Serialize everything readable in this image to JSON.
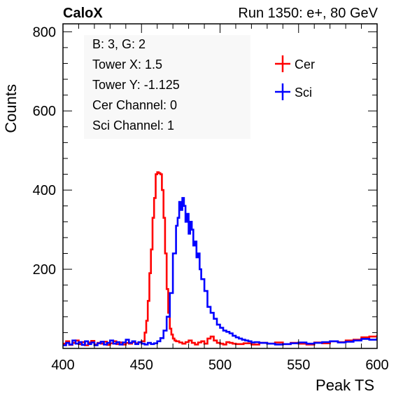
{
  "header": {
    "experiment": "CaloX",
    "run_info": "Run 1350: e+, 80 GeV"
  },
  "stats_box": {
    "lines": [
      "B: 3, G: 2",
      "Tower X: 1.5",
      "Tower Y: -1.125",
      "Cer Channel: 0",
      "Sci Channel: 1"
    ]
  },
  "chart_data": {
    "type": "line",
    "style": "step-histogram",
    "xlabel": "Peak TS",
    "ylabel": "Counts",
    "xlim": [
      400,
      600
    ],
    "ylim": [
      0,
      820
    ],
    "x_ticks": [
      400,
      450,
      500,
      550,
      600
    ],
    "y_ticks": [
      200,
      400,
      600,
      800
    ],
    "grid": false,
    "legend_position": "top-right",
    "series": [
      {
        "name": "Cer",
        "color": "#ff0000",
        "x": [
          400,
          402,
          404,
          406,
          408,
          410,
          412,
          414,
          416,
          418,
          420,
          422,
          424,
          426,
          428,
          430,
          432,
          434,
          436,
          438,
          440,
          442,
          444,
          446,
          448,
          450,
          452,
          453,
          454,
          455,
          456,
          457,
          458,
          459,
          460,
          461,
          462,
          463,
          464,
          465,
          466,
          467,
          468,
          469,
          470,
          471,
          472,
          474,
          476,
          478,
          480,
          482,
          484,
          486,
          488,
          490,
          492,
          494,
          496,
          498,
          500,
          502,
          504,
          506,
          508,
          510,
          515,
          520,
          525,
          530,
          535,
          540,
          545,
          550,
          555,
          560,
          565,
          570,
          575,
          580,
          585,
          590,
          595,
          600
        ],
        "values": [
          12,
          18,
          9,
          14,
          20,
          11,
          16,
          8,
          15,
          19,
          10,
          14,
          12,
          17,
          9,
          13,
          18,
          11,
          15,
          10,
          14,
          12,
          16,
          13,
          15,
          18,
          40,
          70,
          120,
          190,
          250,
          330,
          380,
          440,
          445,
          443,
          440,
          400,
          330,
          240,
          150,
          90,
          50,
          35,
          25,
          20,
          18,
          15,
          12,
          16,
          20,
          14,
          10,
          15,
          18,
          12,
          25,
          30,
          20,
          14,
          12,
          10,
          16,
          14,
          12,
          11,
          13,
          10,
          14,
          12,
          15,
          11,
          14,
          12,
          10,
          15,
          13,
          18,
          16,
          20,
          22,
          28,
          30,
          34
        ]
      },
      {
        "name": "Sci",
        "color": "#0000ff",
        "x": [
          400,
          402,
          404,
          406,
          408,
          410,
          412,
          414,
          416,
          418,
          420,
          422,
          424,
          426,
          428,
          430,
          432,
          434,
          436,
          438,
          440,
          442,
          444,
          446,
          448,
          450,
          452,
          454,
          456,
          458,
          460,
          462,
          464,
          466,
          468,
          470,
          472,
          473,
          474,
          475,
          476,
          477,
          478,
          479,
          480,
          481,
          482,
          483,
          484,
          485,
          486,
          487,
          488,
          490,
          492,
          494,
          496,
          498,
          500,
          502,
          504,
          506,
          508,
          510,
          512,
          514,
          516,
          518,
          520,
          522,
          525,
          530,
          535,
          540,
          545,
          550,
          555,
          560,
          565,
          570,
          575,
          580,
          585,
          590,
          595,
          600
        ],
        "values": [
          8,
          14,
          10,
          20,
          12,
          16,
          9,
          18,
          11,
          15,
          8,
          13,
          17,
          10,
          14,
          20,
          12,
          16,
          10,
          15,
          22,
          14,
          18,
          11,
          16,
          12,
          10,
          14,
          11,
          13,
          18,
          26,
          45,
          80,
          140,
          240,
          310,
          330,
          370,
          350,
          380,
          360,
          320,
          340,
          290,
          320,
          300,
          260,
          270,
          230,
          240,
          200,
          175,
          145,
          105,
          90,
          75,
          60,
          52,
          45,
          42,
          38,
          32,
          28,
          25,
          22,
          20,
          18,
          15,
          16,
          14,
          12,
          10,
          11,
          13,
          15,
          12,
          14,
          16,
          18,
          15,
          17,
          20,
          24,
          22,
          28
        ]
      }
    ]
  }
}
